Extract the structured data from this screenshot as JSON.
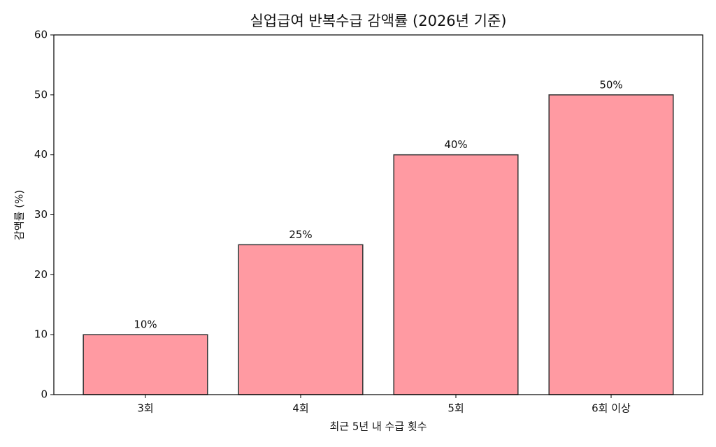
{
  "chart_data": {
    "type": "bar",
    "title": "실업급여 반복수급 감액률 (2026년 기준)",
    "x_label": "최근 5년 내 수급 횟수",
    "y_label": "감액률 (%)",
    "categories": [
      "3회",
      "4회",
      "5회",
      "6회 이상"
    ],
    "values": [
      10,
      25,
      40,
      50
    ],
    "value_labels": [
      "10%",
      "25%",
      "40%",
      "50%"
    ],
    "color": "#ff9aa2",
    "edgecolor": "#333333",
    "ylim": [
      0,
      60
    ],
    "yticks": [
      0,
      10,
      20,
      30,
      40,
      50,
      60
    ],
    "grid": false
  }
}
